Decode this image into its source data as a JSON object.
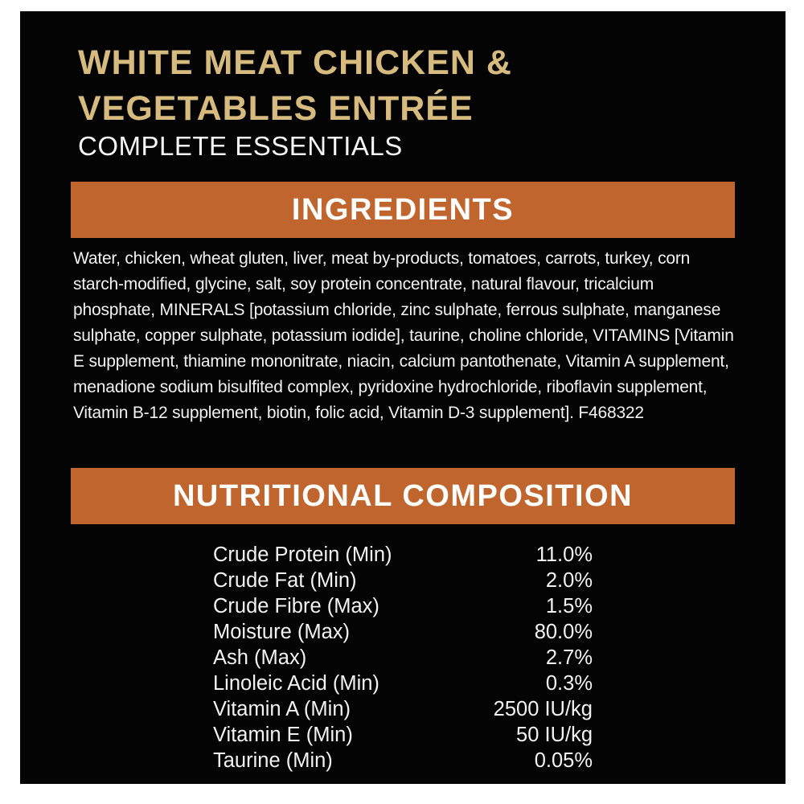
{
  "header": {
    "title": "WHITE MEAT CHICKEN & VEGETABLES ENTRÉE",
    "subtitle": "COMPLETE ESSENTIALS"
  },
  "sections": {
    "ingredients": {
      "banner": "INGREDIENTS",
      "text": "Water, chicken, wheat gluten, liver, meat by-products, tomatoes, carrots, turkey, corn starch-modified, glycine, salt, soy protein concentrate, natural flavour, tricalcium phosphate, MINERALS [potassium chloride, zinc sulphate, ferrous sulphate, manganese sulphate, copper sulphate, potassium iodide], taurine, choline chloride, VITAMINS [Vitamin E supplement, thiamine mononitrate, niacin, calcium pantothenate, Vitamin A supplement, menadione sodium bisulfited complex, pyridoxine hydrochloride, riboflavin supplement, Vitamin B-12 supplement, biotin, folic acid, Vitamin D-3 supplement]. F468322"
    },
    "nutrition": {
      "banner": "NUTRITIONAL COMPOSITION",
      "rows": [
        {
          "label": "Crude Protein (Min)",
          "value": "11.0%"
        },
        {
          "label": "Crude Fat (Min)",
          "value": "2.0%"
        },
        {
          "label": "Crude Fibre (Max)",
          "value": "1.5%"
        },
        {
          "label": "Moisture (Max)",
          "value": "80.0%"
        },
        {
          "label": "Ash (Max)",
          "value": "2.7%"
        },
        {
          "label": "Linoleic Acid (Min)",
          "value": "0.3%"
        },
        {
          "label": "Vitamin A (Min)",
          "value": "2500 IU/kg"
        },
        {
          "label": "Vitamin E (Min)",
          "value": "50 IU/kg"
        },
        {
          "label": "Taurine (Min)",
          "value": "0.05%"
        }
      ]
    }
  },
  "colors": {
    "banner_orange": "#c1652e",
    "title_gold": "#d6ba7e",
    "panel_black": "#040404",
    "body_text": "#f2f2f2",
    "page_background": "#ffffff"
  }
}
